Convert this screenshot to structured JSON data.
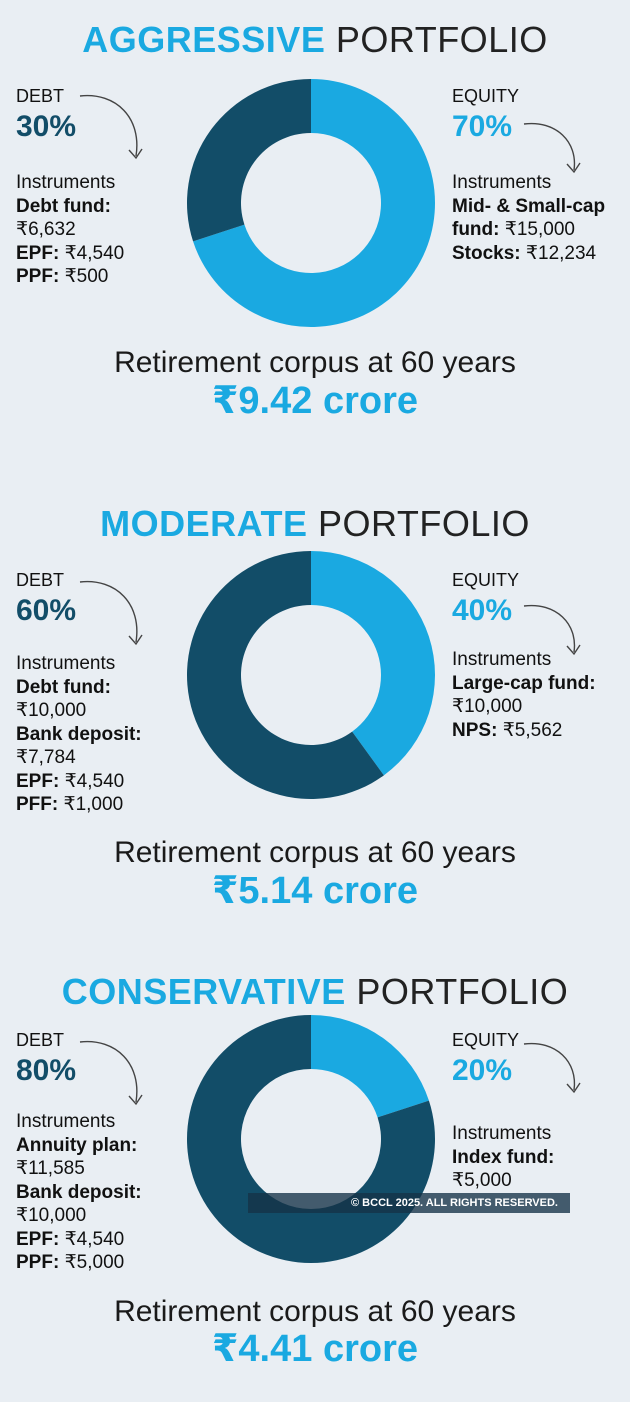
{
  "colors": {
    "debt": "#124d68",
    "equity": "#1aa9e1",
    "donut_hole": "#e9eef3"
  },
  "sections": [
    {
      "title_accent": "AGGRESSIVE",
      "title_rest": "PORTFOLIO",
      "debt": {
        "label": "DEBT",
        "percent": "30%",
        "instruments_header": "Instruments",
        "items": [
          {
            "name": "Debt fund:",
            "value": "₹6,632"
          },
          {
            "name": "EPF:",
            "value": "₹4,540"
          },
          {
            "name": "PPF:",
            "value": "₹500"
          }
        ]
      },
      "equity": {
        "label": "EQUITY",
        "percent": "70%",
        "instruments_header": "Instruments",
        "items": [
          {
            "name": "Mid- & Small-cap fund:",
            "value": "₹15,000"
          },
          {
            "name": "Stocks:",
            "value": "₹12,234"
          }
        ]
      },
      "corpus_label": "Retirement corpus at 60 years",
      "corpus_value": "₹9.42 crore"
    },
    {
      "title_accent": "MODERATE",
      "title_rest": "PORTFOLIO",
      "debt": {
        "label": "DEBT",
        "percent": "60%",
        "instruments_header": "Instruments",
        "items": [
          {
            "name": "Debt fund:",
            "value": "₹10,000"
          },
          {
            "name": "Bank deposit:",
            "value": "₹7,784"
          },
          {
            "name": "EPF:",
            "value": "₹4,540"
          },
          {
            "name": "PFF:",
            "value": "₹1,000"
          }
        ]
      },
      "equity": {
        "label": "EQUITY",
        "percent": "40%",
        "instruments_header": "Instruments",
        "items": [
          {
            "name": "Large-cap fund:",
            "value": "₹10,000"
          },
          {
            "name": "NPS:",
            "value": "₹5,562"
          }
        ]
      },
      "corpus_label": "Retirement corpus at 60 years",
      "corpus_value": "₹5.14 crore"
    },
    {
      "title_accent": "CONSERVATIVE",
      "title_rest": "PORTFOLIO",
      "debt": {
        "label": "DEBT",
        "percent": "80%",
        "instruments_header": "Instruments",
        "items": [
          {
            "name": "Annuity plan:",
            "value": "₹11,585"
          },
          {
            "name": "Bank deposit:",
            "value": "₹10,000"
          },
          {
            "name": "EPF:",
            "value": "₹4,540"
          },
          {
            "name": "PPF:",
            "value": "₹5,000"
          }
        ]
      },
      "equity": {
        "label": "EQUITY",
        "percent": "20%",
        "instruments_header": "Instruments",
        "items": [
          {
            "name": "Index fund:",
            "value": "₹5,000"
          }
        ]
      },
      "corpus_label": "Retirement corpus at 60 years",
      "corpus_value": "₹4.41 crore"
    }
  ],
  "chart_data": [
    {
      "type": "pie",
      "categories": [
        "Debt",
        "Equity"
      ],
      "values": [
        30,
        70
      ]
    },
    {
      "type": "pie",
      "categories": [
        "Debt",
        "Equity"
      ],
      "values": [
        60,
        40
      ]
    },
    {
      "type": "pie",
      "categories": [
        "Debt",
        "Equity"
      ],
      "values": [
        80,
        20
      ]
    }
  ],
  "copyright": "© BCCL 2025. ALL RIGHTS RESERVED."
}
